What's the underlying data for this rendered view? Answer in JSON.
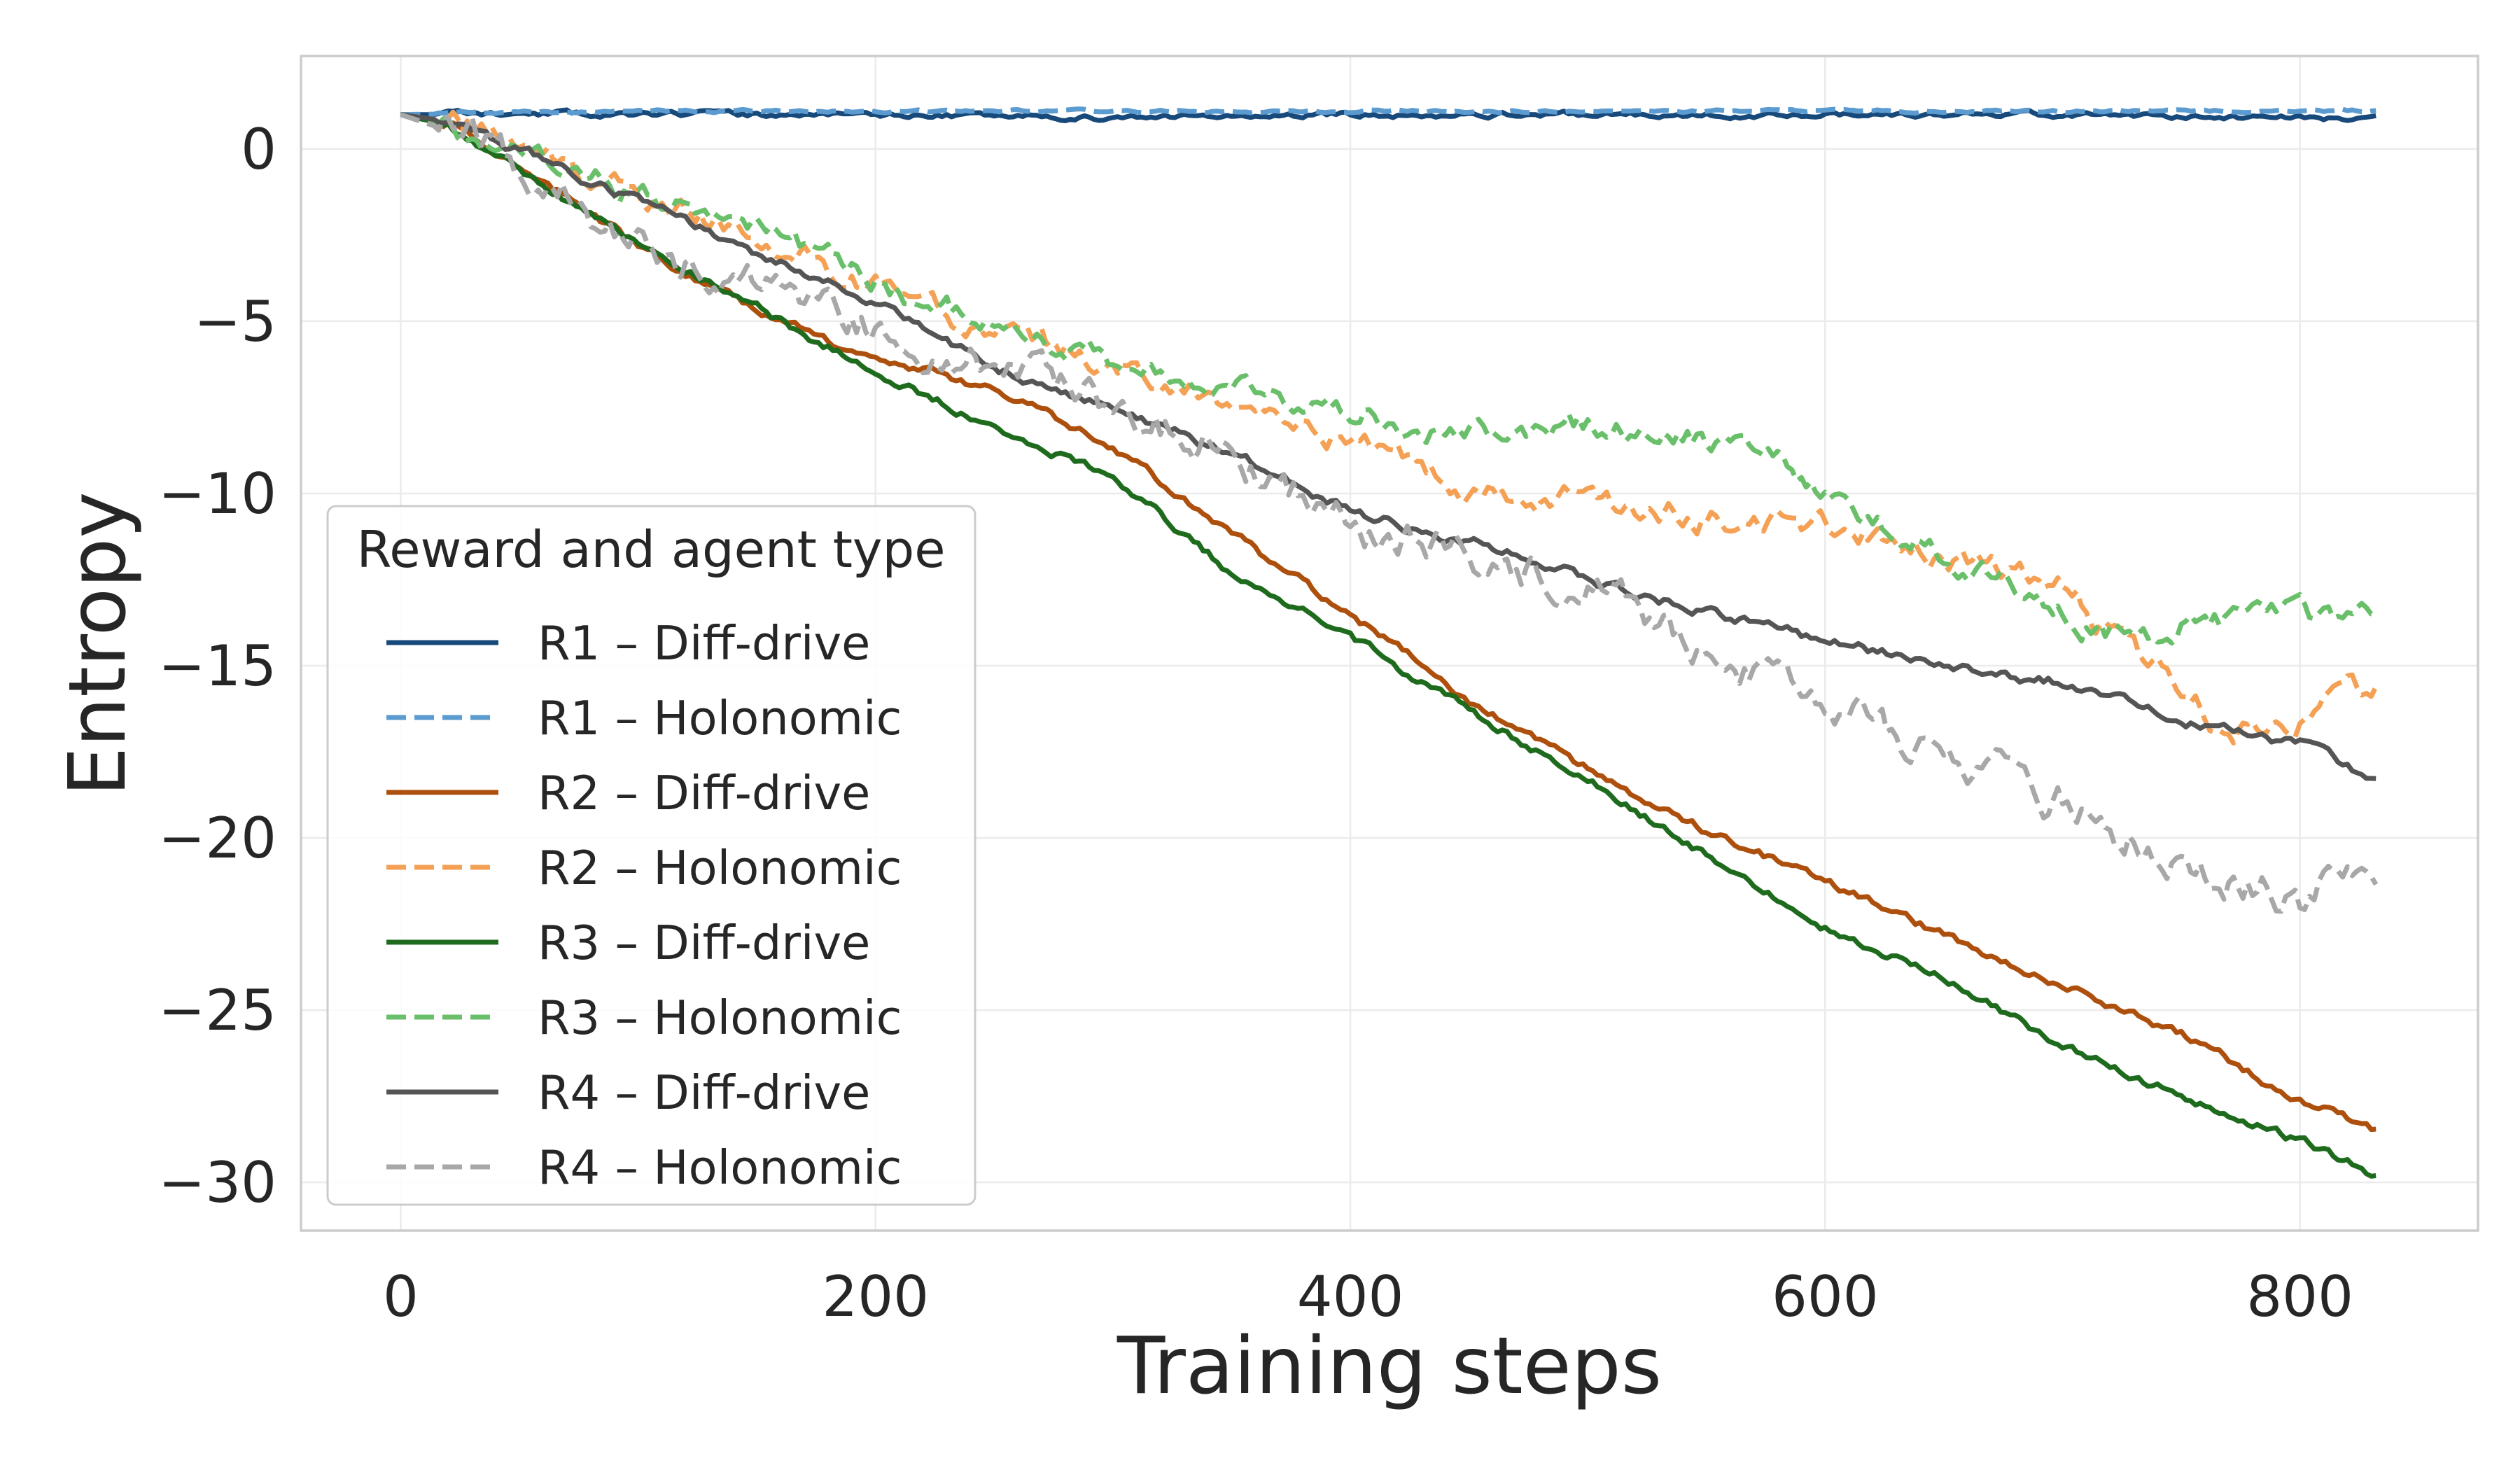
{
  "chart_data": {
    "type": "line",
    "title": "",
    "xlabel": "Training steps",
    "ylabel": "Entropy",
    "xlim": [
      -42,
      875
    ],
    "ylim": [
      -31.4,
      2.7
    ],
    "xticks": [
      0,
      200,
      400,
      600,
      800
    ],
    "yticks": [
      0,
      -5,
      -10,
      -15,
      -20,
      -25,
      -30
    ],
    "xtick_labels": [
      "0",
      "200",
      "400",
      "600",
      "800"
    ],
    "ytick_labels": [
      "0",
      "−5",
      "−10",
      "−15",
      "−20",
      "−25",
      "−30"
    ],
    "grid": true,
    "legend_title": "Reward and agent type",
    "legend_position": "lower-left",
    "series": [
      {
        "name": "R1 – Diff-drive",
        "color": "#17497a",
        "dash": "solid",
        "noise": 0.06,
        "seed": 11,
        "x": [
          0,
          100,
          200,
          300,
          400,
          500,
          600,
          700,
          800,
          833
        ],
        "y": [
          1.0,
          1.0,
          1.0,
          0.9,
          1.0,
          1.0,
          1.0,
          1.0,
          0.9,
          0.9
        ]
      },
      {
        "name": "R1 – Holonomic",
        "color": "#5b9bd0",
        "dash": "dashed",
        "noise": 0.03,
        "seed": 12,
        "x": [
          0,
          100,
          200,
          300,
          400,
          500,
          600,
          700,
          800,
          833
        ],
        "y": [
          1.0,
          1.1,
          1.1,
          1.1,
          1.1,
          1.1,
          1.1,
          1.1,
          1.1,
          1.1
        ]
      },
      {
        "name": "R2 – Diff-drive",
        "color": "#ad500e",
        "dash": "solid",
        "noise": 0.1,
        "seed": 13,
        "x": [
          0,
          20,
          50,
          100,
          150,
          180,
          200,
          250,
          300,
          350,
          400,
          450,
          500,
          550,
          600,
          650,
          700,
          750,
          800,
          833
        ],
        "y": [
          1.0,
          0.8,
          -0.5,
          -2.8,
          -4.7,
          -5.6,
          -6.0,
          -7.0,
          -8.6,
          -11.2,
          -13.5,
          -16.0,
          -18.0,
          -19.8,
          -21.3,
          -22.8,
          -24.3,
          -25.7,
          -27.6,
          -28.5
        ]
      },
      {
        "name": "R2 – Holonomic",
        "color": "#f5a155",
        "dash": "dashed",
        "noise": 0.28,
        "seed": 14,
        "x": [
          0,
          30,
          60,
          100,
          150,
          200,
          250,
          300,
          350,
          400,
          450,
          500,
          550,
          600,
          650,
          700,
          740,
          770,
          800,
          833
        ],
        "y": [
          1.0,
          0.6,
          -0.2,
          -1.3,
          -2.5,
          -4.0,
          -5.3,
          -6.3,
          -7.5,
          -8.5,
          -9.8,
          -10.2,
          -10.7,
          -11.0,
          -11.8,
          -12.8,
          -15.0,
          -17.0,
          -16.5,
          -15.5
        ]
      },
      {
        "name": "R3 – Diff-drive",
        "color": "#1e6b1e",
        "dash": "solid",
        "noise": 0.1,
        "seed": 15,
        "x": [
          0,
          20,
          50,
          100,
          150,
          200,
          250,
          300,
          350,
          400,
          450,
          500,
          550,
          600,
          650,
          700,
          750,
          800,
          833
        ],
        "y": [
          1.0,
          0.7,
          -0.6,
          -2.8,
          -4.6,
          -6.5,
          -8.0,
          -9.5,
          -12.3,
          -14.2,
          -16.3,
          -18.3,
          -20.5,
          -22.6,
          -24.1,
          -26.0,
          -27.5,
          -28.8,
          -29.8
        ]
      },
      {
        "name": "R3 – Holonomic",
        "color": "#6abf6a",
        "dash": "dashed",
        "noise": 0.28,
        "seed": 16,
        "x": [
          0,
          30,
          60,
          100,
          150,
          200,
          250,
          300,
          350,
          400,
          450,
          500,
          550,
          580,
          610,
          650,
          700,
          730,
          760,
          800,
          833
        ],
        "y": [
          1.0,
          0.5,
          -0.5,
          -1.3,
          -2.2,
          -3.8,
          -5.2,
          -6.2,
          -7.0,
          -7.5,
          -8.3,
          -8.0,
          -8.5,
          -9.0,
          -10.3,
          -11.7,
          -13.5,
          -14.3,
          -13.6,
          -13.6,
          -13.8
        ]
      },
      {
        "name": "R4 – Diff-drive",
        "color": "#555555",
        "dash": "solid",
        "noise": 0.12,
        "seed": 17,
        "x": [
          0,
          20,
          50,
          100,
          150,
          200,
          250,
          300,
          350,
          400,
          450,
          500,
          550,
          600,
          650,
          700,
          750,
          800,
          833
        ],
        "y": [
          1.0,
          0.8,
          0.0,
          -1.5,
          -3.0,
          -4.4,
          -6.3,
          -7.6,
          -8.8,
          -10.5,
          -11.4,
          -12.5,
          -13.4,
          -14.3,
          -15.0,
          -15.5,
          -16.6,
          -17.3,
          -18.3
        ]
      },
      {
        "name": "R4 – Holonomic",
        "color": "#a8a8a8",
        "dash": "dashed",
        "noise": 0.42,
        "seed": 18,
        "x": [
          0,
          30,
          60,
          100,
          150,
          200,
          250,
          300,
          350,
          400,
          450,
          500,
          550,
          600,
          650,
          700,
          750,
          800,
          820,
          833
        ],
        "y": [
          1.0,
          0.3,
          -0.8,
          -2.8,
          -4.0,
          -5.2,
          -6.2,
          -7.5,
          -8.8,
          -11.0,
          -11.8,
          -12.8,
          -14.7,
          -16.2,
          -17.6,
          -19.0,
          -20.7,
          -21.8,
          -21.0,
          -22.0
        ]
      }
    ]
  }
}
